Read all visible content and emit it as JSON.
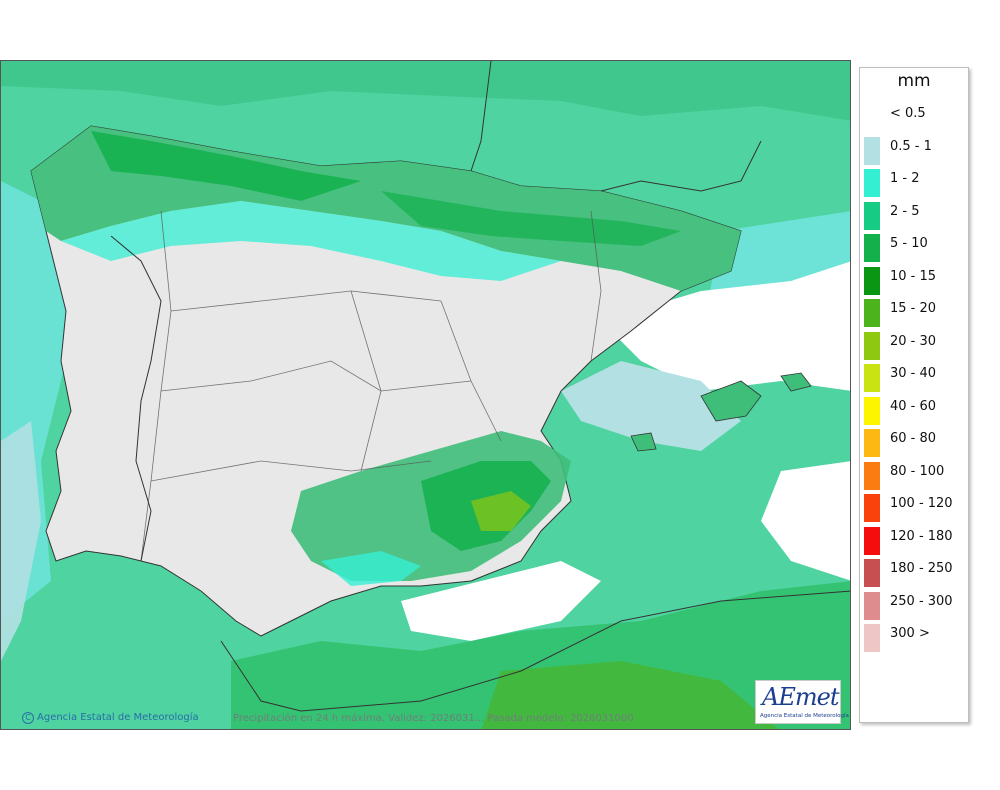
{
  "legend": {
    "unit": "mm",
    "items": [
      {
        "label": "< 0.5",
        "color": "#ffffff"
      },
      {
        "label": "0.5 - 1",
        "color": "#b3e0e3"
      },
      {
        "label": "1 - 2",
        "color": "#35efd3"
      },
      {
        "label": "2 - 5",
        "color": "#16cc85"
      },
      {
        "label": "5 - 10",
        "color": "#13b04c"
      },
      {
        "label": "10 - 15",
        "color": "#0a9612"
      },
      {
        "label": "15 - 20",
        "color": "#4cb31c"
      },
      {
        "label": "20 - 30",
        "color": "#8fc810"
      },
      {
        "label": "30 - 40",
        "color": "#c9e312"
      },
      {
        "label": "40 - 60",
        "color": "#fdf500"
      },
      {
        "label": "60 - 80",
        "color": "#fdb813"
      },
      {
        "label": "80 - 100",
        "color": "#fb7c10"
      },
      {
        "label": "100 - 120",
        "color": "#fa420c"
      },
      {
        "label": "120 - 180",
        "color": "#f50c0c"
      },
      {
        "label": "180 - 250",
        "color": "#c74f52"
      },
      {
        "label": "250 - 300",
        "color": "#de8c8d"
      },
      {
        "label": "300 >",
        "color": "#efc6c6"
      }
    ]
  },
  "footer": {
    "credit": "Agencia Estatal de Meteorología",
    "credit_symbol": "C",
    "caption": "Precipitación en 24 h máxima. Validez: 2026031... Pasada modelo: 2026031000"
  },
  "logo": {
    "text_a": "AE",
    "text_b": "met",
    "subtitle": "Agencia Estatal de Meteorología"
  },
  "map_icon": "iberia-precipitation-map"
}
